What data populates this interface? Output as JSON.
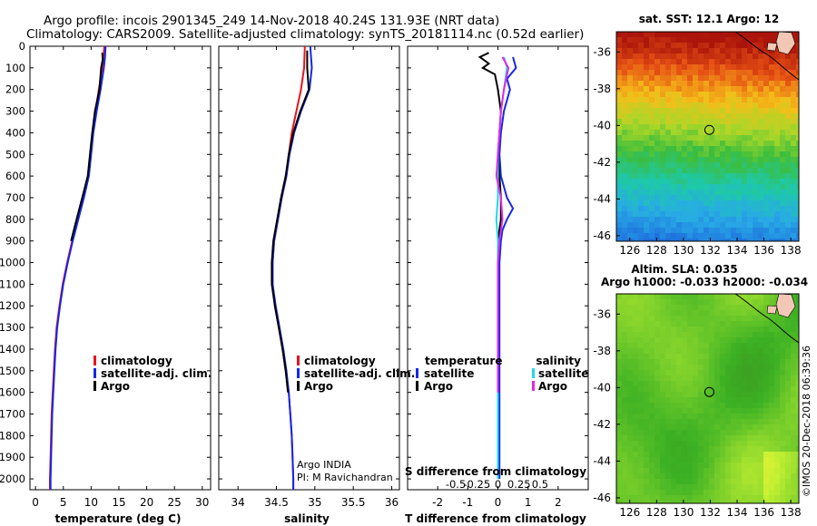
{
  "header": {
    "line1": "Argo profile: incois 2901345_249 14-Nov-2018 40.24S 131.93E (NRT data)",
    "line2": "Climatology: CARS2009. Satellite-adjusted climatology: synTS_20181114.nc (0.52d earlier)"
  },
  "colors": {
    "climatology": "#e8141e",
    "satellite": "#1428e6",
    "argo": "#000000",
    "sat_salinity": "#20d8e8",
    "argo_salinity": "#e628e6"
  },
  "credit": {
    "line1": "Argo INDIA",
    "line2": "PI: M Ravichandran"
  },
  "watermark": "©IMOS 20-Dec-2018 06:39:36",
  "chart_data": [
    {
      "type": "line",
      "xlabel": "temperature (deg C)",
      "ylabel": "",
      "xlim": [
        -1,
        31.5
      ],
      "ylim": [
        0,
        2050
      ],
      "y_reversed": true,
      "xticks": [
        0,
        5,
        10,
        15,
        20,
        25,
        30
      ],
      "yticks": [
        0,
        100,
        200,
        300,
        400,
        500,
        600,
        700,
        800,
        900,
        1000,
        1100,
        1200,
        1300,
        1400,
        1500,
        1600,
        1700,
        1800,
        1900,
        2000
      ],
      "legend": {
        "placement": "bottom-right",
        "entries": [
          {
            "label": "climatology",
            "color": "#e8141e"
          },
          {
            "label": "satellite-adj. clim.",
            "color": "#1428e6"
          },
          {
            "label": "Argo",
            "color": "#000000"
          }
        ]
      },
      "series": [
        {
          "name": "climatology",
          "color": "#e8141e",
          "points": [
            [
              12.4,
              0
            ],
            [
              12.2,
              50
            ],
            [
              12.0,
              100
            ],
            [
              11.4,
              200
            ],
            [
              10.8,
              300
            ],
            [
              10.3,
              400
            ],
            [
              9.9,
              500
            ],
            [
              9.5,
              600
            ],
            [
              8.6,
              700
            ],
            [
              7.6,
              800
            ],
            [
              6.6,
              900
            ],
            [
              5.7,
              1000
            ],
            [
              4.9,
              1100
            ],
            [
              4.3,
              1200
            ],
            [
              3.8,
              1300
            ],
            [
              3.5,
              1400
            ],
            [
              3.3,
              1500
            ],
            [
              3.1,
              1600
            ],
            [
              2.9,
              1700
            ],
            [
              2.8,
              1800
            ],
            [
              2.7,
              1900
            ],
            [
              2.6,
              2000
            ],
            [
              2.6,
              2050
            ]
          ]
        },
        {
          "name": "satellite-adj. clim.",
          "color": "#1428e6",
          "points": [
            [
              12.6,
              0
            ],
            [
              12.5,
              50
            ],
            [
              12.3,
              100
            ],
            [
              11.7,
              200
            ],
            [
              11.0,
              300
            ],
            [
              10.4,
              400
            ],
            [
              10.0,
              500
            ],
            [
              9.6,
              600
            ],
            [
              8.7,
              700
            ],
            [
              7.7,
              800
            ],
            [
              6.7,
              900
            ],
            [
              5.8,
              1000
            ],
            [
              5.0,
              1100
            ],
            [
              4.4,
              1200
            ],
            [
              3.9,
              1300
            ],
            [
              3.6,
              1400
            ],
            [
              3.4,
              1500
            ],
            [
              3.2,
              1600
            ],
            [
              3.0,
              1700
            ],
            [
              2.9,
              1800
            ],
            [
              2.8,
              1900
            ],
            [
              2.7,
              2000
            ],
            [
              2.7,
              2050
            ]
          ]
        },
        {
          "name": "Argo",
          "color": "#000000",
          "points": [
            [
              12.0,
              30
            ],
            [
              12.1,
              60
            ],
            [
              11.8,
              100
            ],
            [
              11.5,
              200
            ],
            [
              10.7,
              300
            ],
            [
              10.2,
              400
            ],
            [
              9.8,
              500
            ],
            [
              9.4,
              600
            ],
            [
              8.4,
              700
            ],
            [
              7.4,
              800
            ],
            [
              6.4,
              900
            ]
          ]
        }
      ]
    },
    {
      "type": "line",
      "xlabel": "salinity",
      "ylabel": "",
      "xlim": [
        33.75,
        36.1
      ],
      "ylim": [
        0,
        2050
      ],
      "y_reversed": true,
      "xticks": [
        34,
        34.5,
        35,
        35.5,
        36
      ],
      "legend": {
        "placement": "bottom-right",
        "entries": [
          {
            "label": "climatology",
            "color": "#e8141e"
          },
          {
            "label": "satellite-adj. clim.",
            "color": "#1428e6"
          },
          {
            "label": "Argo",
            "color": "#000000"
          }
        ]
      },
      "series": [
        {
          "name": "climatology",
          "color": "#e8141e",
          "points": [
            [
              34.87,
              0
            ],
            [
              34.86,
              100
            ],
            [
              34.82,
              200
            ],
            [
              34.76,
              300
            ],
            [
              34.7,
              400
            ],
            [
              34.66,
              500
            ],
            [
              34.63,
              600
            ],
            [
              34.57,
              700
            ],
            [
              34.52,
              800
            ],
            [
              34.47,
              900
            ],
            [
              34.45,
              1000
            ],
            [
              34.45,
              1100
            ],
            [
              34.48,
              1200
            ],
            [
              34.53,
              1300
            ],
            [
              34.58,
              1400
            ],
            [
              34.62,
              1500
            ],
            [
              34.66,
              1600
            ],
            [
              34.68,
              1700
            ],
            [
              34.7,
              1800
            ],
            [
              34.71,
              1900
            ],
            [
              34.72,
              2000
            ],
            [
              34.72,
              2050
            ]
          ]
        },
        {
          "name": "satellite-adj. clim.",
          "color": "#1428e6",
          "points": [
            [
              34.94,
              0
            ],
            [
              34.96,
              100
            ],
            [
              34.93,
              200
            ],
            [
              34.82,
              300
            ],
            [
              34.73,
              400
            ],
            [
              34.67,
              500
            ],
            [
              34.63,
              600
            ],
            [
              34.57,
              700
            ],
            [
              34.52,
              800
            ],
            [
              34.47,
              900
            ],
            [
              34.45,
              1000
            ],
            [
              34.45,
              1100
            ],
            [
              34.49,
              1200
            ],
            [
              34.54,
              1300
            ],
            [
              34.59,
              1400
            ],
            [
              34.63,
              1500
            ],
            [
              34.66,
              1600
            ],
            [
              34.68,
              1700
            ],
            [
              34.7,
              1800
            ],
            [
              34.71,
              1900
            ],
            [
              34.72,
              2000
            ],
            [
              34.72,
              2050
            ]
          ]
        },
        {
          "name": "Argo",
          "color": "#000000",
          "points": [
            [
              34.9,
              20
            ],
            [
              34.9,
              100
            ],
            [
              34.92,
              200
            ],
            [
              34.81,
              300
            ],
            [
              34.72,
              400
            ],
            [
              34.66,
              500
            ],
            [
              34.62,
              600
            ],
            [
              34.56,
              700
            ],
            [
              34.51,
              800
            ],
            [
              34.46,
              900
            ],
            [
              34.44,
              1000
            ],
            [
              34.44,
              1100
            ],
            [
              34.48,
              1200
            ],
            [
              34.53,
              1300
            ],
            [
              34.58,
              1400
            ],
            [
              34.62,
              1500
            ],
            [
              34.65,
              1600
            ]
          ]
        }
      ]
    },
    {
      "type": "line",
      "xlabel": "T difference from climatology",
      "top_xlabel": "S difference from climatology",
      "xlim": [
        -3,
        3
      ],
      "ylim": [
        0,
        2050
      ],
      "y_reversed": true,
      "xticks": [
        -2,
        -1,
        0,
        1,
        2
      ],
      "top_xticks": [
        -0.5,
        -0.25,
        0,
        0.25,
        0.5
      ],
      "top_xtick_labels": [
        "-0.5",
        "-0.25",
        "0",
        "0.25",
        "0.5"
      ],
      "legend": {
        "placement": "bottom",
        "entries": [
          {
            "group": "temperature",
            "label": "satellite",
            "color": "#1428e6"
          },
          {
            "group": "temperature",
            "label": "Argo",
            "color": "#000000"
          },
          {
            "group": "salinity",
            "label": "satellite",
            "color": "#20d8e8"
          },
          {
            "group": "salinity",
            "label": "Argo",
            "color": "#e628e6"
          }
        ]
      },
      "series": [
        {
          "name": "T satellite",
          "color": "#1428e6",
          "points": [
            [
              0.5,
              50
            ],
            [
              0.6,
              100
            ],
            [
              0.3,
              150
            ],
            [
              0.4,
              200
            ],
            [
              0.2,
              300
            ],
            [
              0.1,
              400
            ],
            [
              0.05,
              500
            ],
            [
              0.1,
              600
            ],
            [
              0.3,
              700
            ],
            [
              0.5,
              750
            ],
            [
              0.3,
              800
            ],
            [
              0.15,
              850
            ],
            [
              0.1,
              900
            ],
            [
              0.05,
              1000
            ],
            [
              0.05,
              1200
            ],
            [
              0.05,
              1500
            ],
            [
              0.05,
              2000
            ]
          ]
        },
        {
          "name": "T Argo",
          "color": "#000000",
          "points": [
            [
              -0.3,
              30
            ],
            [
              -0.6,
              50
            ],
            [
              -0.3,
              80
            ],
            [
              -0.5,
              100
            ],
            [
              -0.1,
              130
            ],
            [
              0.0,
              200
            ],
            [
              0.1,
              300
            ],
            [
              0.05,
              400
            ],
            [
              0.0,
              500
            ],
            [
              0.05,
              600
            ],
            [
              0.1,
              700
            ],
            [
              0.1,
              800
            ],
            [
              0.0,
              900
            ]
          ]
        },
        {
          "name": "S satellite",
          "color": "#20d8e8",
          "points": [
            [
              0.2,
              50
            ],
            [
              0.3,
              100
            ],
            [
              0.2,
              200
            ],
            [
              0.1,
              300
            ],
            [
              0.05,
              400
            ],
            [
              0.0,
              500
            ],
            [
              0.0,
              700
            ],
            [
              -0.05,
              800
            ],
            [
              0.0,
              900
            ],
            [
              0.0,
              1100
            ],
            [
              0.0,
              1300
            ],
            [
              0.0,
              1600
            ],
            [
              0.0,
              2000
            ]
          ]
        },
        {
          "name": "S Argo",
          "color": "#e628e6",
          "points": [
            [
              0.15,
              50
            ],
            [
              0.35,
              100
            ],
            [
              0.2,
              200
            ],
            [
              0.1,
              300
            ],
            [
              0.05,
              400
            ],
            [
              0.0,
              500
            ],
            [
              -0.05,
              600
            ],
            [
              0.1,
              700
            ],
            [
              0.15,
              800
            ],
            [
              0.05,
              900
            ],
            [
              0.0,
              1000
            ],
            [
              0.0,
              1200
            ],
            [
              0.0,
              1600
            ]
          ]
        }
      ]
    },
    {
      "type": "heatmap",
      "title": "sat. SST: 12.1 Argo: 12",
      "xlim": [
        125,
        138.6
      ],
      "ylim": [
        -46.3,
        -34.9
      ],
      "xticks": [
        126,
        128,
        130,
        132,
        134,
        136,
        138
      ],
      "yticks": [
        -36,
        -38,
        -40,
        -42,
        -44,
        -46
      ],
      "marker": {
        "x": 131.93,
        "y": -40.24
      }
    },
    {
      "type": "heatmap",
      "title": "Altim. SLA: 0.035",
      "subtitle": "Argo h1000: -0.033 h2000: -0.034",
      "xlim": [
        125,
        138.6
      ],
      "ylim": [
        -46.3,
        -34.9
      ],
      "xticks": [
        126,
        128,
        130,
        132,
        134,
        136,
        138
      ],
      "yticks": [
        -36,
        -38,
        -40,
        -42,
        -44,
        -46
      ],
      "marker": {
        "x": 131.93,
        "y": -40.24
      }
    }
  ]
}
